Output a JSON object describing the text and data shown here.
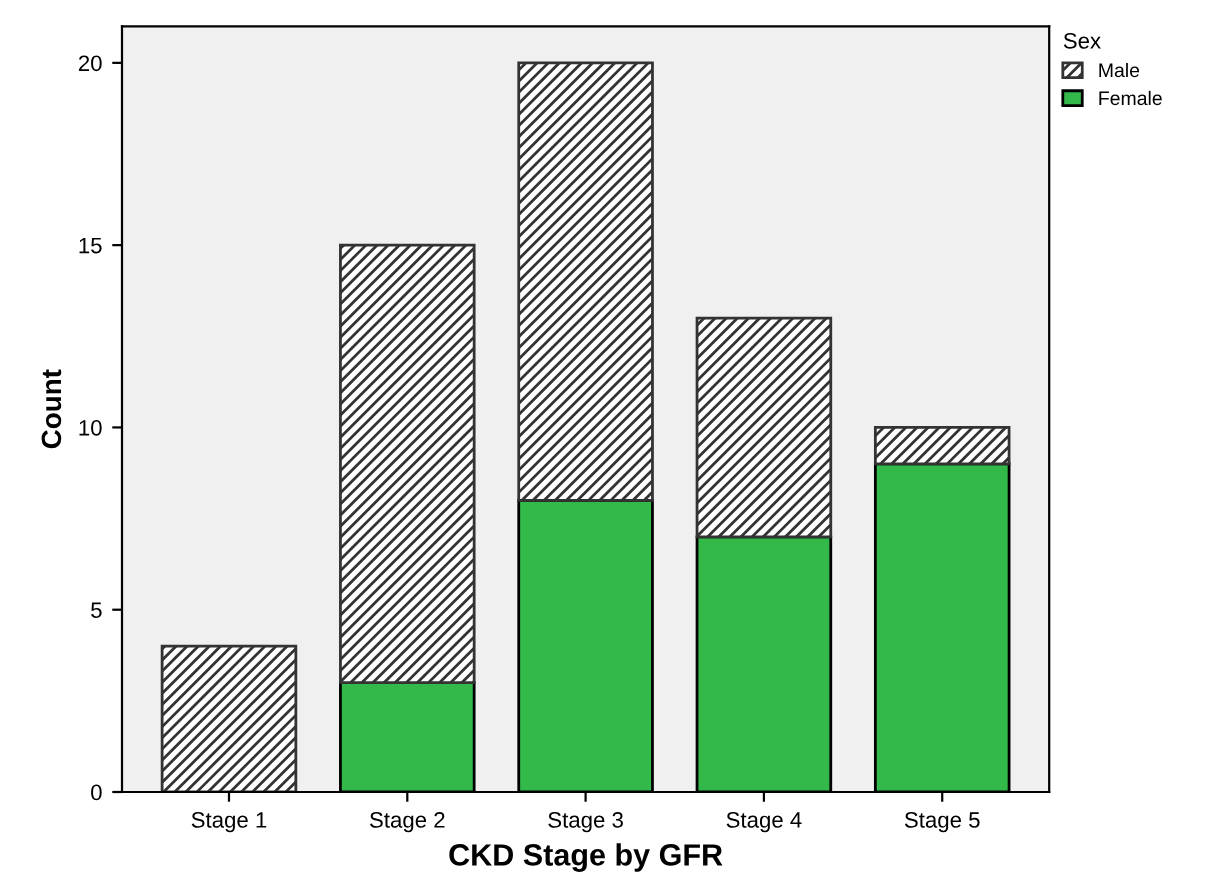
{
  "chart_data": {
    "type": "bar",
    "stacked": true,
    "xlabel": "CKD Stage by GFR",
    "ylabel": "Count",
    "legend_title": "Sex",
    "legend": "top right",
    "categories": [
      "Stage 1",
      "Stage 2",
      "Stage 3",
      "Stage 4",
      "Stage 5"
    ],
    "series": [
      {
        "name": "Female",
        "color": "#33b84a",
        "values": [
          0,
          3,
          8,
          7,
          9
        ]
      },
      {
        "name": "Male",
        "color": "#333333",
        "values": [
          4,
          12,
          12,
          6,
          1
        ]
      }
    ],
    "ylim": [
      0,
      21
    ],
    "yticks": [
      0,
      5,
      10,
      15,
      20
    ],
    "grid": false
  }
}
